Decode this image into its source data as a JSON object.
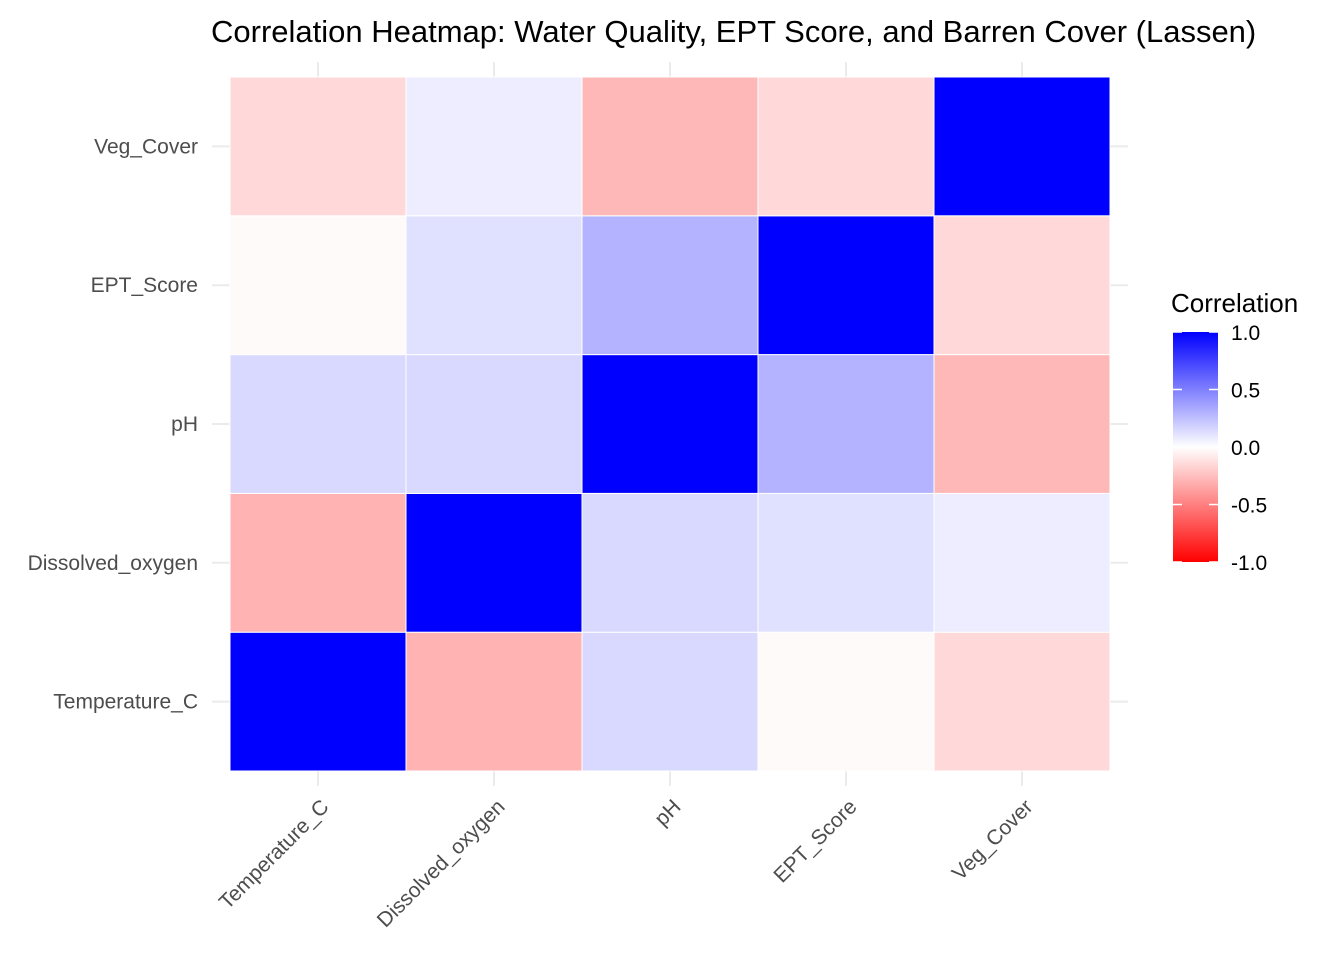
{
  "chart_data": {
    "type": "heatmap",
    "title": "Correlation Heatmap: Water Quality, EPT Score, and Barren Cover (Lassen)",
    "x_categories": [
      "Temperature_C",
      "Dissolved_oxygen",
      "pH",
      "EPT_Score",
      "Veg_Cover"
    ],
    "y_categories": [
      "Temperature_C",
      "Dissolved_oxygen",
      "pH",
      "EPT_Score",
      "Veg_Cover"
    ],
    "values": [
      [
        1.0,
        -0.3,
        0.15,
        -0.02,
        -0.15
      ],
      [
        -0.3,
        1.0,
        0.15,
        0.12,
        0.07
      ],
      [
        0.15,
        0.15,
        1.0,
        0.3,
        -0.28
      ],
      [
        -0.02,
        0.12,
        0.3,
        1.0,
        -0.15
      ],
      [
        -0.15,
        0.07,
        -0.28,
        -0.15,
        1.0
      ]
    ],
    "legend": {
      "title": "Correlation",
      "range": [
        -1,
        1
      ],
      "ticks": [
        1.0,
        0.5,
        0.0,
        -0.5,
        -1.0
      ],
      "tick_labels": [
        "1.0",
        "0.5",
        "0.0",
        "-0.5",
        "-1.0"
      ],
      "placement": "right",
      "low_color": "#ff0000",
      "mid_color": "#ffffff",
      "high_color": "#0000ff"
    },
    "grid": true
  }
}
